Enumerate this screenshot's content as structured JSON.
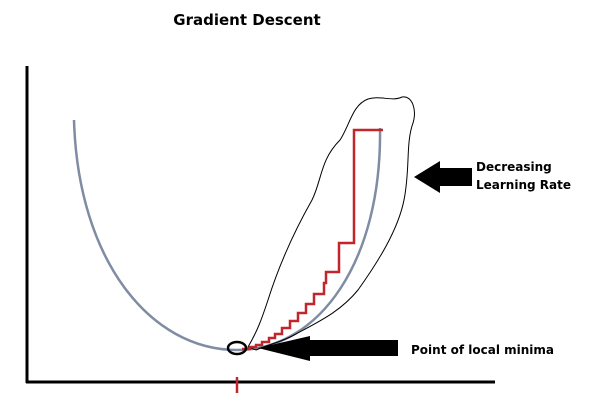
{
  "title": "Gradient Descent",
  "annotations": {
    "learning_rate": "Decreasing Learning Rate",
    "local_minima": "Point of local minima"
  },
  "colors": {
    "curve": "#7f8ca3",
    "steps": "#c0262b",
    "ink": "#000000"
  }
}
